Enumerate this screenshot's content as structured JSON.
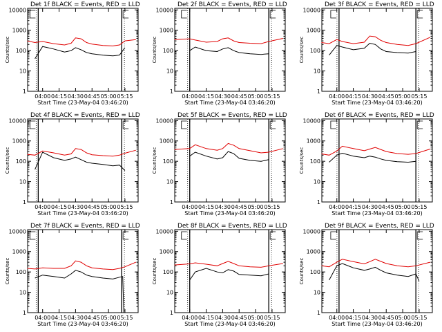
{
  "colors": {
    "events": "#000000",
    "lld": "#e00000",
    "axes": "#000000"
  },
  "chart_data": [
    {
      "type": "line",
      "title": "Det 1f BLACK = Events, RED = LLD",
      "xlabel": "Start Time (23-May-04 03:46:20)",
      "ylabel": "Counts/sec",
      "xticks": [
        "04:00",
        "04:15",
        "04:30",
        "04:45",
        "05:00",
        "05:15"
      ],
      "yscale": "log",
      "yticks": [
        "1",
        "10",
        "100",
        "1000",
        "10000"
      ],
      "ylim": [
        1,
        12000
      ],
      "series": [
        {
          "color": "events",
          "x": [
            "03:53",
            "04:00",
            "04:10",
            "04:20",
            "04:26",
            "04:30",
            "04:35",
            "04:40",
            "04:45",
            "04:55",
            "05:04",
            "05:10",
            "05:15"
          ],
          "values": [
            40,
            160,
            120,
            85,
            100,
            140,
            110,
            80,
            70,
            60,
            55,
            60,
            140
          ]
        },
        {
          "color": "lld",
          "x": [
            "03:46",
            "03:53",
            "04:00",
            "04:10",
            "04:20",
            "04:26",
            "04:30",
            "04:35",
            "04:40",
            "04:45",
            "04:55",
            "05:04",
            "05:10",
            "05:15",
            "05:25"
          ],
          "values": [
            300,
            250,
            280,
            220,
            190,
            230,
            420,
            380,
            250,
            210,
            180,
            170,
            190,
            300,
            350
          ]
        }
      ],
      "markers": [
        "03:56",
        "05:12"
      ]
    },
    {
      "type": "line",
      "title": "Det 2f BLACK = Events, RED = LLD",
      "xlabel": "Start Time (23-May-04 03:46:20)",
      "ylabel": "Counts/sec",
      "xticks": [
        "04:00",
        "04:15",
        "04:30",
        "04:45",
        "05:00",
        "05:15"
      ],
      "yscale": "log",
      "yticks": [
        "1",
        "10",
        "100",
        "1000",
        "10000"
      ],
      "ylim": [
        1,
        12000
      ],
      "series": [
        {
          "color": "events",
          "x": [
            "04:00",
            "04:05",
            "04:15",
            "04:25",
            "04:30",
            "04:35",
            "04:40",
            "04:45",
            "04:55",
            "05:05",
            "05:12"
          ],
          "values": [
            100,
            150,
            100,
            90,
            120,
            140,
            100,
            80,
            70,
            65,
            70
          ]
        },
        {
          "color": "lld",
          "x": [
            "03:46",
            "04:00",
            "04:05",
            "04:15",
            "04:25",
            "04:30",
            "04:35",
            "04:40",
            "04:45",
            "04:55",
            "05:05",
            "05:12",
            "05:25"
          ],
          "values": [
            350,
            380,
            330,
            260,
            280,
            380,
            420,
            300,
            250,
            230,
            220,
            280,
            400
          ]
        }
      ],
      "markers": [
        "04:00",
        "05:12"
      ]
    },
    {
      "type": "line",
      "title": "Det 3f BLACK = Events, RED = LLD",
      "xlabel": "Start Time (23-May-04 03:46:20)",
      "ylabel": "Counts/sec",
      "xticks": [
        "04:00",
        "04:15",
        "04:30",
        "04:45",
        "05:00",
        "05:15"
      ],
      "yscale": "log",
      "yticks": [
        "1",
        "10",
        "100",
        "1000",
        "10000"
      ],
      "ylim": [
        1,
        12000
      ],
      "series": [
        {
          "color": "events",
          "x": [
            "03:53",
            "04:00",
            "04:05",
            "04:15",
            "04:25",
            "04:30",
            "04:35",
            "04:40",
            "04:45",
            "04:55",
            "05:05",
            "05:12"
          ],
          "values": [
            60,
            180,
            150,
            110,
            130,
            230,
            200,
            120,
            90,
            80,
            75,
            90
          ]
        },
        {
          "color": "lld",
          "x": [
            "03:46",
            "03:53",
            "04:00",
            "04:05",
            "04:15",
            "04:25",
            "04:30",
            "04:35",
            "04:40",
            "04:45",
            "04:55",
            "05:05",
            "05:12",
            "05:25"
          ],
          "values": [
            250,
            220,
            350,
            280,
            220,
            260,
            520,
            480,
            320,
            250,
            200,
            180,
            220,
            450
          ]
        }
      ],
      "markers": [
        "04:02",
        "05:12"
      ]
    },
    {
      "type": "line",
      "title": "Det 4f BLACK = Events, RED = LLD",
      "xlabel": "Start Time (23-May-04 03:46:20)",
      "ylabel": "Counts/sec",
      "xticks": [
        "04:00",
        "04:15",
        "04:30",
        "04:45",
        "05:00",
        "05:15"
      ],
      "yscale": "log",
      "yticks": [
        "1",
        "10",
        "100",
        "1000",
        "10000"
      ],
      "ylim": [
        1,
        12000
      ],
      "series": [
        {
          "color": "events",
          "x": [
            "03:53",
            "04:00",
            "04:10",
            "04:20",
            "04:26",
            "04:30",
            "04:35",
            "04:40",
            "04:45",
            "04:55",
            "05:04",
            "05:10",
            "05:15"
          ],
          "values": [
            40,
            280,
            150,
            110,
            130,
            160,
            120,
            90,
            80,
            70,
            60,
            65,
            35
          ]
        },
        {
          "color": "lld",
          "x": [
            "03:46",
            "03:53",
            "04:00",
            "04:10",
            "04:20",
            "04:26",
            "04:30",
            "04:35",
            "04:40",
            "04:45",
            "04:55",
            "05:04",
            "05:10",
            "05:15",
            "05:25"
          ],
          "values": [
            220,
            200,
            320,
            260,
            200,
            230,
            420,
            380,
            260,
            210,
            190,
            180,
            200,
            250,
            350
          ]
        }
      ],
      "markers": [
        "03:56",
        "05:12"
      ]
    },
    {
      "type": "line",
      "title": "Det 5f BLACK = Events, RED = LLD",
      "xlabel": "Start Time (23-May-04 03:46:20)",
      "ylabel": "Counts/sec",
      "xticks": [
        "04:00",
        "04:15",
        "04:30",
        "04:45",
        "05:00",
        "05:15"
      ],
      "yscale": "log",
      "yticks": [
        "1",
        "10",
        "100",
        "1000",
        "10000"
      ],
      "ylim": [
        1,
        12000
      ],
      "series": [
        {
          "color": "events",
          "x": [
            "04:00",
            "04:05",
            "04:15",
            "04:25",
            "04:30",
            "04:35",
            "04:40",
            "04:45",
            "04:55",
            "05:05",
            "05:12"
          ],
          "values": [
            180,
            280,
            180,
            130,
            150,
            300,
            240,
            140,
            110,
            100,
            120
          ]
        },
        {
          "color": "lld",
          "x": [
            "03:46",
            "04:00",
            "04:05",
            "04:15",
            "04:25",
            "04:30",
            "04:35",
            "04:40",
            "04:45",
            "04:55",
            "05:05",
            "05:12",
            "05:25"
          ],
          "values": [
            380,
            420,
            650,
            420,
            350,
            420,
            750,
            620,
            420,
            330,
            260,
            280,
            420
          ]
        }
      ],
      "markers": [
        "04:00",
        "05:12"
      ]
    },
    {
      "type": "line",
      "title": "Det 6f BLACK = Events, RED = LLD",
      "xlabel": "Start Time (23-May-04 03:46:20)",
      "ylabel": "Counts/sec",
      "xticks": [
        "04:00",
        "04:15",
        "04:30",
        "04:45",
        "05:00",
        "05:15"
      ],
      "yscale": "log",
      "yticks": [
        "1",
        "10",
        "100",
        "1000",
        "10000"
      ],
      "ylim": [
        1,
        12000
      ],
      "series": [
        {
          "color": "events",
          "x": [
            "03:53",
            "04:00",
            "04:05",
            "04:15",
            "04:25",
            "04:30",
            "04:35",
            "04:40",
            "04:45",
            "04:55",
            "05:05",
            "05:12"
          ],
          "values": [
            90,
            200,
            250,
            180,
            150,
            180,
            160,
            130,
            110,
            95,
            90,
            100
          ]
        },
        {
          "color": "lld",
          "x": [
            "03:46",
            "03:53",
            "04:00",
            "04:05",
            "04:15",
            "04:25",
            "04:30",
            "04:35",
            "04:40",
            "04:45",
            "04:55",
            "05:05",
            "05:12",
            "05:25"
          ],
          "values": [
            230,
            200,
            320,
            550,
            420,
            330,
            400,
            480,
            380,
            300,
            240,
            220,
            240,
            400
          ]
        }
      ],
      "markers": [
        "04:02",
        "05:12"
      ]
    },
    {
      "type": "line",
      "title": "Det 7f BLACK = Events, RED = LLD",
      "xlabel": "Start Time (23-May-04 03:46:20)",
      "ylabel": "Counts/sec",
      "xticks": [
        "04:00",
        "04:15",
        "04:30",
        "04:45",
        "05:00",
        "05:15"
      ],
      "yscale": "log",
      "yticks": [
        "1",
        "10",
        "100",
        "1000",
        "10000"
      ],
      "ylim": [
        1,
        12000
      ],
      "series": [
        {
          "color": "events",
          "x": [
            "03:53",
            "04:00",
            "04:10",
            "04:20",
            "04:26",
            "04:30",
            "04:35",
            "04:40",
            "04:45",
            "04:55",
            "05:04",
            "05:10",
            "05:13",
            "05:14"
          ],
          "values": [
            50,
            70,
            60,
            50,
            80,
            120,
            100,
            70,
            60,
            50,
            45,
            55,
            60,
            1
          ]
        },
        {
          "color": "lld",
          "x": [
            "03:46",
            "03:53",
            "04:00",
            "04:10",
            "04:20",
            "04:26",
            "04:30",
            "04:35",
            "04:40",
            "04:45",
            "04:55",
            "05:04",
            "05:10",
            "05:15",
            "05:25"
          ],
          "values": [
            150,
            140,
            160,
            150,
            150,
            200,
            350,
            300,
            200,
            160,
            140,
            130,
            150,
            180,
            300
          ]
        }
      ],
      "markers": [
        "03:56",
        "05:12"
      ]
    },
    {
      "type": "line",
      "title": "Det 8f BLACK = Events, RED = LLD",
      "xlabel": "Start Time (23-May-04 03:46:20)",
      "ylabel": "Counts/sec",
      "xticks": [
        "04:00",
        "04:15",
        "04:30",
        "04:45",
        "05:00",
        "05:15"
      ],
      "yscale": "log",
      "yticks": [
        "1",
        "10",
        "100",
        "1000",
        "10000"
      ],
      "ylim": [
        1,
        12000
      ],
      "series": [
        {
          "color": "events",
          "x": [
            "04:00",
            "04:05",
            "04:15",
            "04:25",
            "04:30",
            "04:35",
            "04:40",
            "04:45",
            "04:55",
            "05:05",
            "05:12"
          ],
          "values": [
            40,
            100,
            150,
            100,
            90,
            130,
            110,
            75,
            70,
            65,
            80
          ]
        },
        {
          "color": "lld",
          "x": [
            "03:46",
            "04:00",
            "04:05",
            "04:15",
            "04:25",
            "04:30",
            "04:35",
            "04:40",
            "04:45",
            "04:55",
            "05:05",
            "05:12",
            "05:25"
          ],
          "values": [
            220,
            250,
            280,
            240,
            200,
            260,
            330,
            260,
            200,
            180,
            170,
            200,
            260
          ]
        }
      ],
      "markers": [
        "04:00",
        "05:12"
      ]
    },
    {
      "type": "line",
      "title": "Det 9f BLACK = Events, RED = LLD",
      "xlabel": "Start Time (23-May-04 03:46:20)",
      "ylabel": "Counts/sec",
      "xticks": [
        "04:00",
        "04:15",
        "04:30",
        "04:45",
        "05:00",
        "05:15"
      ],
      "yscale": "log",
      "yticks": [
        "1",
        "10",
        "100",
        "1000",
        "10000"
      ],
      "ylim": [
        1,
        12000
      ],
      "series": [
        {
          "color": "events",
          "x": [
            "03:53",
            "04:00",
            "04:05",
            "04:15",
            "04:25",
            "04:30",
            "04:35",
            "04:40",
            "04:45",
            "04:55",
            "05:05",
            "05:12",
            "05:15"
          ],
          "values": [
            40,
            200,
            260,
            160,
            120,
            140,
            170,
            120,
            90,
            70,
            60,
            80,
            35
          ]
        },
        {
          "color": "lld",
          "x": [
            "03:46",
            "03:53",
            "04:00",
            "04:05",
            "04:15",
            "04:25",
            "04:30",
            "04:35",
            "04:40",
            "04:45",
            "04:55",
            "05:05",
            "05:12",
            "05:25"
          ],
          "values": [
            200,
            180,
            300,
            420,
            320,
            250,
            320,
            420,
            330,
            260,
            200,
            180,
            200,
            300
          ]
        }
      ],
      "markers": [
        "04:02",
        "05:12"
      ]
    }
  ]
}
